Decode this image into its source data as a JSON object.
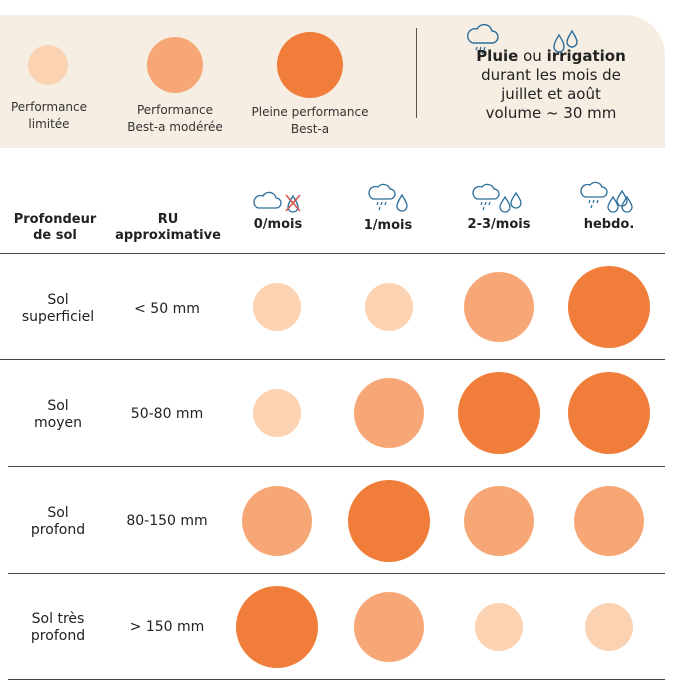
{
  "colors": {
    "light": "#fbd3b3",
    "medium": "#f6a775",
    "full": "#f07d3a",
    "legend_bg": "#f7eee3",
    "icon_blue": "#2c6e9c",
    "icon_red": "#d9534f"
  },
  "legend": {
    "items": [
      {
        "label_lines": [
          "Performance",
          "limitée"
        ],
        "level": "light"
      },
      {
        "label_lines": [
          "Performance",
          "Best-a modérée"
        ],
        "level": "medium"
      },
      {
        "label_lines": [
          "Pleine performance",
          "Best-a"
        ],
        "level": "full"
      }
    ],
    "rain": {
      "word1": "Pluie",
      "connector": " ou ",
      "word2": "irrigation",
      "line2": "durant les mois de",
      "line3": "juillet et août",
      "line4": "volume ~ 30 mm",
      "icons": [
        "rain-cloud-icon",
        "water-drops-icon"
      ]
    }
  },
  "table": {
    "header": {
      "depth": [
        "Profondeur",
        "de sol"
      ],
      "ru": [
        "RU",
        "approximative"
      ],
      "columns": [
        {
          "label": "0/mois",
          "icon": "cloud-no-rain-icon"
        },
        {
          "label": "1/mois",
          "icon": "rain-cloud-single-drop-icon"
        },
        {
          "label": "2-3/mois",
          "icon": "rain-cloud-two-drops-icon"
        },
        {
          "label": "hebdo.",
          "icon": "rain-cloud-three-drops-icon"
        }
      ]
    },
    "rows": [
      {
        "depth": [
          "Sol",
          "superficiel"
        ],
        "ru": "< 50 mm",
        "levels": [
          "light",
          "light",
          "medium",
          "full"
        ]
      },
      {
        "depth": [
          "Sol",
          "moyen"
        ],
        "ru": "50-80 mm",
        "levels": [
          "light",
          "medium",
          "full",
          "full"
        ]
      },
      {
        "depth": [
          "Sol",
          "profond"
        ],
        "ru": "80-150 mm",
        "levels": [
          "medium",
          "full",
          "medium",
          "medium"
        ]
      },
      {
        "depth": [
          "Sol très",
          "profond"
        ],
        "ru": "> 150 mm",
        "levels": [
          "full",
          "medium",
          "light",
          "light"
        ]
      }
    ]
  }
}
